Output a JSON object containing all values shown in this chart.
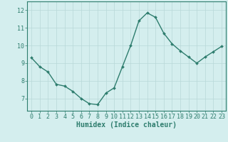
{
  "x": [
    0,
    1,
    2,
    3,
    4,
    5,
    6,
    7,
    8,
    9,
    10,
    11,
    12,
    13,
    14,
    15,
    16,
    17,
    18,
    19,
    20,
    21,
    22,
    23
  ],
  "y": [
    9.3,
    8.8,
    8.5,
    7.8,
    7.7,
    7.4,
    7.0,
    6.7,
    6.65,
    7.3,
    7.6,
    8.8,
    10.0,
    11.4,
    11.85,
    11.6,
    10.7,
    10.1,
    9.7,
    9.35,
    9.0,
    9.35,
    9.65,
    9.95
  ],
  "line_color": "#2e7d6e",
  "marker": "D",
  "marker_size": 2,
  "bg_color": "#d4eeee",
  "grid_color": "#b8d8d8",
  "axis_color": "#2e7d6e",
  "tick_color": "#2e7d6e",
  "xlabel": "Humidex (Indice chaleur)",
  "xlabel_fontsize": 7,
  "xlim": [
    -0.5,
    23.5
  ],
  "ylim": [
    6.3,
    12.5
  ],
  "yticks": [
    7,
    8,
    9,
    10,
    11,
    12
  ],
  "xticks": [
    0,
    1,
    2,
    3,
    4,
    5,
    6,
    7,
    8,
    9,
    10,
    11,
    12,
    13,
    14,
    15,
    16,
    17,
    18,
    19,
    20,
    21,
    22,
    23
  ],
  "tick_fontsize": 6,
  "line_width": 1.0
}
